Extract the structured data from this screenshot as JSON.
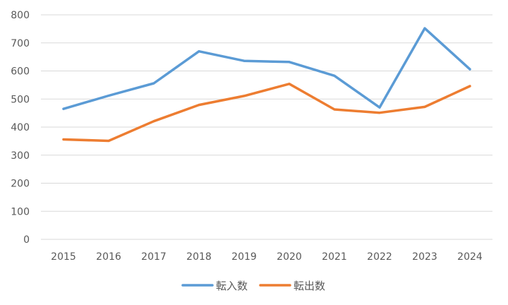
{
  "chart_data": {
    "type": "line",
    "title": "",
    "xlabel": "",
    "ylabel": "",
    "categories": [
      "2015",
      "2016",
      "2017",
      "2018",
      "2019",
      "2020",
      "2021",
      "2022",
      "2023",
      "2024"
    ],
    "ylim": [
      0,
      800
    ],
    "yticks": [
      0,
      100,
      200,
      300,
      400,
      500,
      600,
      700,
      800
    ],
    "ytick_labels": [
      "0",
      "100",
      "200",
      "300",
      "400",
      "500",
      "600",
      "700",
      "800"
    ],
    "grid": "horizontal",
    "legend_position": "bottom",
    "series": [
      {
        "name": "転入数",
        "color": "#5B9BD5",
        "values": [
          465,
          512,
          556,
          670,
          636,
          632,
          583,
          470,
          752,
          606
        ]
      },
      {
        "name": "転出数",
        "color": "#ED7D31",
        "values": [
          356,
          351,
          421,
          479,
          511,
          554,
          463,
          451,
          472,
          546
        ]
      }
    ]
  }
}
